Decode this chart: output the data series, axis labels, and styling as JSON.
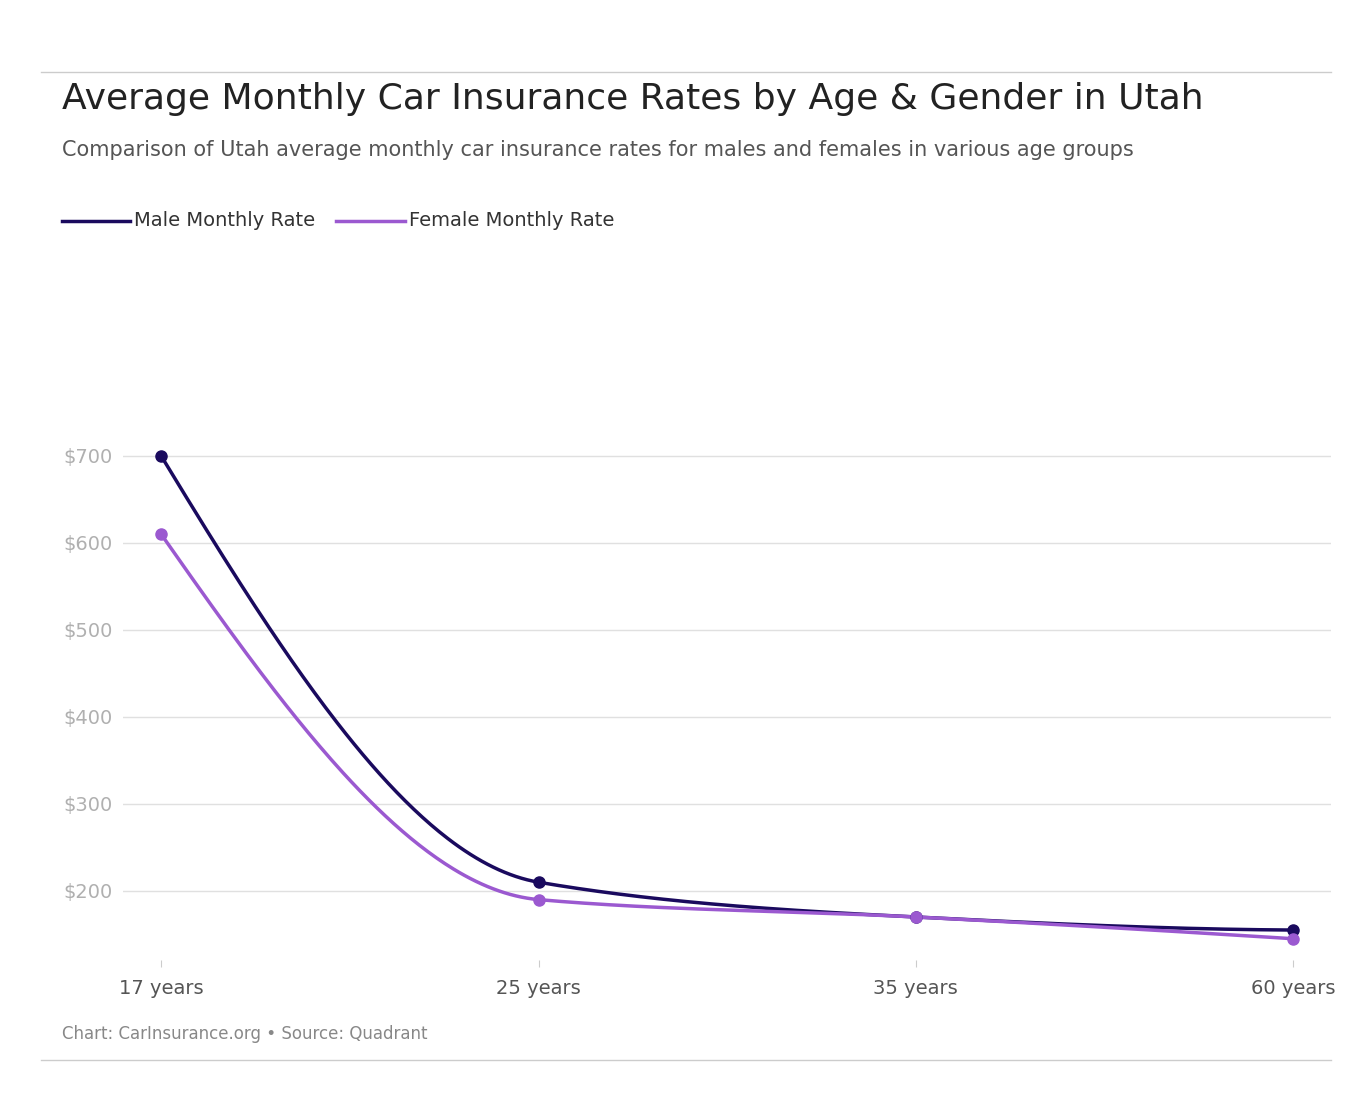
{
  "title": "Average Monthly Car Insurance Rates by Age & Gender in Utah",
  "subtitle": "Comparison of Utah average monthly car insurance rates for males and females in various age groups",
  "footnote": "Chart: CarInsurance.org • Source: Quadrant",
  "x_labels": [
    "17 years",
    "25 years",
    "35 years",
    "60 years"
  ],
  "x_values": [
    0,
    1,
    2,
    3
  ],
  "male_values": [
    700,
    210,
    170,
    155
  ],
  "female_values": [
    610,
    190,
    170,
    145
  ],
  "male_color": "#1a0a5e",
  "female_color": "#9b59d0",
  "yticks": [
    200,
    300,
    400,
    500,
    600,
    700
  ],
  "ylim": [
    120,
    780
  ],
  "background_color": "#ffffff",
  "grid_color": "#e0e0e0",
  "title_fontsize": 26,
  "subtitle_fontsize": 15,
  "tick_label_color": "#b0b0b0",
  "legend_label_male": "Male Monthly Rate",
  "legend_label_female": "Female Monthly Rate",
  "marker_size": 8,
  "line_width": 2.5
}
